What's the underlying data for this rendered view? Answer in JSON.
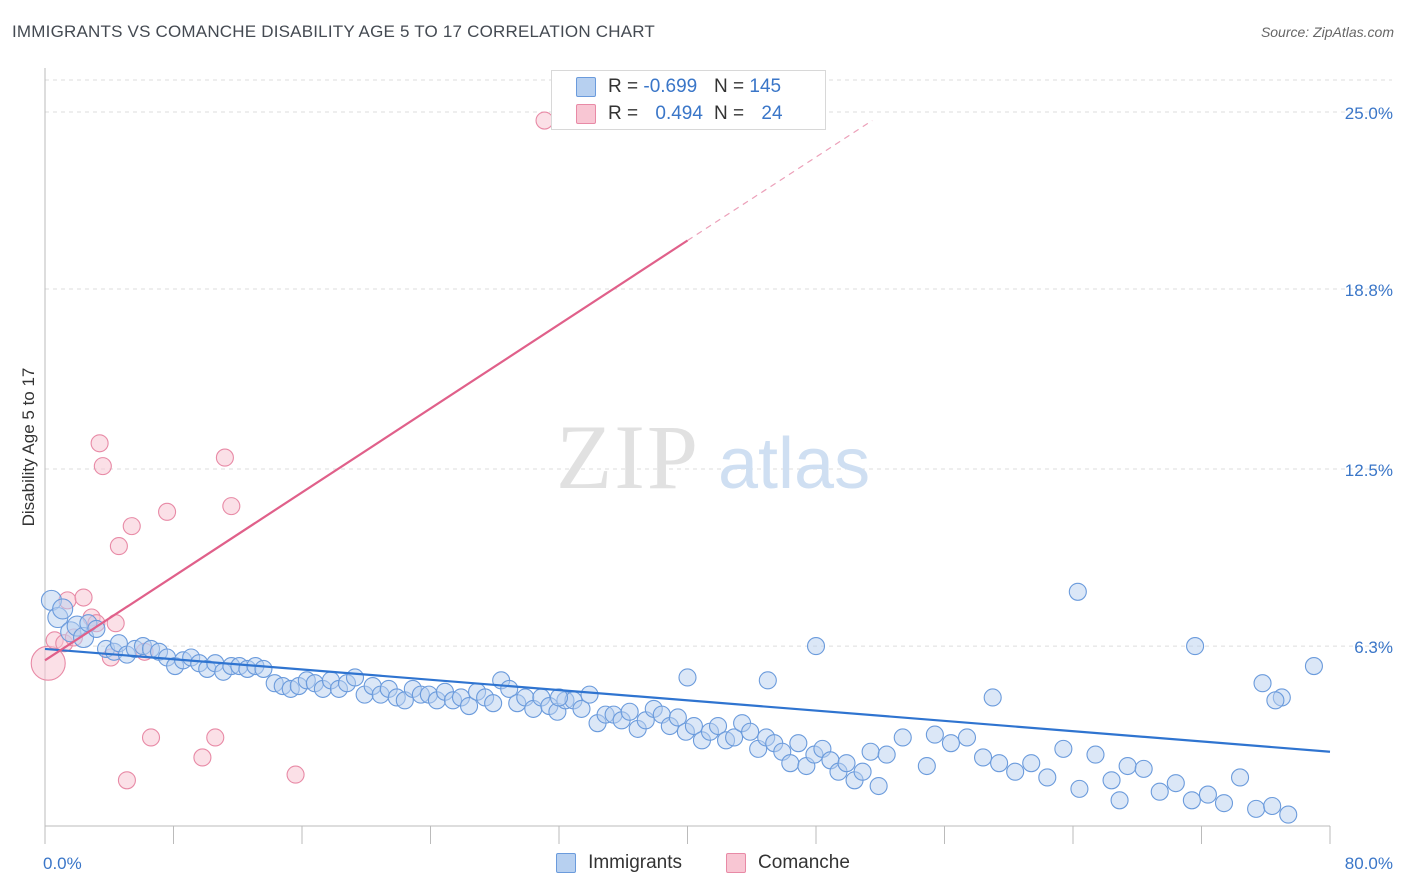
{
  "header": {
    "title": "IMMIGRANTS VS COMANCHE DISABILITY AGE 5 TO 17 CORRELATION CHART",
    "source": "Source: ZipAtlas.com"
  },
  "watermark": {
    "zip": "ZIP",
    "atlas": "atlas"
  },
  "colors": {
    "immigrants_fill": "#b7d0f0",
    "immigrants_stroke": "#6b9bdc",
    "immigrants_line": "#2f74d0",
    "comanche_fill": "#f8c6d3",
    "comanche_stroke": "#e88aa6",
    "comanche_line": "#e0608a",
    "axis_label": "#3a76c8",
    "grid": "#dddddd"
  },
  "legend_top": [
    {
      "r_label": "R = ",
      "r_value": "-0.699",
      "n_label": "N = ",
      "n_value": "145"
    },
    {
      "r_label": "R = ",
      "r_value": "0.494",
      "n_label": "N = ",
      "n_value": "24"
    }
  ],
  "legend_bottom": [
    "Immigrants",
    "Comanche"
  ],
  "chart_data": {
    "type": "scatter",
    "title": "IMMIGRANTS VS COMANCHE DISABILITY AGE 5 TO 17 CORRELATION CHART",
    "ylabel": "Disability Age 5 to 17",
    "xlim": [
      0,
      80
    ],
    "ylim": [
      0,
      26.4
    ],
    "x_tick_labels": [
      "0.0%",
      "80.0%"
    ],
    "y_tick_labels": [
      "25.0%",
      "18.8%",
      "12.5%",
      "6.3%"
    ],
    "y_ticks": [
      25.0,
      18.8,
      12.5,
      6.3
    ],
    "grid": true,
    "legend_placement": "top-center",
    "series": [
      {
        "name": "Immigrants",
        "r": -0.699,
        "n": 145,
        "trend": {
          "x": [
            0,
            80
          ],
          "y": [
            6.2,
            2.6
          ]
        },
        "points": [
          [
            0.4,
            7.9
          ],
          [
            0.8,
            7.3
          ],
          [
            1.1,
            7.6
          ],
          [
            1.6,
            6.8
          ],
          [
            2.0,
            7.0
          ],
          [
            2.4,
            6.6
          ],
          [
            2.7,
            7.1
          ],
          [
            3.2,
            6.9
          ],
          [
            3.8,
            6.2
          ],
          [
            4.3,
            6.1
          ],
          [
            4.6,
            6.4
          ],
          [
            5.1,
            6.0
          ],
          [
            5.6,
            6.2
          ],
          [
            6.1,
            6.3
          ],
          [
            6.6,
            6.2
          ],
          [
            7.1,
            6.1
          ],
          [
            7.6,
            5.9
          ],
          [
            8.1,
            5.6
          ],
          [
            8.6,
            5.8
          ],
          [
            9.1,
            5.9
          ],
          [
            9.6,
            5.7
          ],
          [
            10.1,
            5.5
          ],
          [
            10.6,
            5.7
          ],
          [
            11.1,
            5.4
          ],
          [
            11.6,
            5.6
          ],
          [
            12.1,
            5.6
          ],
          [
            12.6,
            5.5
          ],
          [
            13.1,
            5.6
          ],
          [
            13.6,
            5.5
          ],
          [
            14.3,
            5.0
          ],
          [
            14.8,
            4.9
          ],
          [
            15.3,
            4.8
          ],
          [
            15.8,
            4.9
          ],
          [
            16.3,
            5.1
          ],
          [
            16.8,
            5.0
          ],
          [
            17.3,
            4.8
          ],
          [
            17.8,
            5.1
          ],
          [
            18.3,
            4.8
          ],
          [
            18.8,
            5.0
          ],
          [
            19.3,
            5.2
          ],
          [
            19.9,
            4.6
          ],
          [
            20.4,
            4.9
          ],
          [
            20.9,
            4.6
          ],
          [
            21.4,
            4.8
          ],
          [
            21.9,
            4.5
          ],
          [
            22.4,
            4.4
          ],
          [
            22.9,
            4.8
          ],
          [
            23.4,
            4.6
          ],
          [
            23.9,
            4.6
          ],
          [
            24.4,
            4.4
          ],
          [
            24.9,
            4.7
          ],
          [
            25.4,
            4.4
          ],
          [
            25.9,
            4.5
          ],
          [
            26.4,
            4.2
          ],
          [
            26.9,
            4.7
          ],
          [
            27.4,
            4.5
          ],
          [
            27.9,
            4.3
          ],
          [
            28.4,
            5.1
          ],
          [
            28.9,
            4.8
          ],
          [
            29.4,
            4.3
          ],
          [
            29.9,
            4.5
          ],
          [
            30.4,
            4.1
          ],
          [
            30.9,
            4.5
          ],
          [
            31.4,
            4.2
          ],
          [
            31.9,
            4.0
          ],
          [
            32.4,
            4.4
          ],
          [
            32.9,
            4.4
          ],
          [
            33.4,
            4.1
          ],
          [
            33.9,
            4.6
          ],
          [
            34.4,
            3.6
          ],
          [
            34.9,
            3.9
          ],
          [
            35.4,
            3.9
          ],
          [
            35.9,
            3.7
          ],
          [
            36.4,
            4.0
          ],
          [
            36.9,
            3.4
          ],
          [
            37.4,
            3.7
          ],
          [
            37.9,
            4.1
          ],
          [
            38.4,
            3.9
          ],
          [
            38.9,
            3.5
          ],
          [
            39.4,
            3.8
          ],
          [
            39.9,
            3.3
          ],
          [
            40.4,
            3.5
          ],
          [
            40.9,
            3.0
          ],
          [
            41.4,
            3.3
          ],
          [
            41.9,
            3.5
          ],
          [
            42.4,
            3.0
          ],
          [
            42.9,
            3.1
          ],
          [
            43.4,
            3.6
          ],
          [
            43.9,
            3.3
          ],
          [
            44.4,
            2.7
          ],
          [
            44.9,
            3.1
          ],
          [
            45.4,
            2.9
          ],
          [
            45.9,
            2.6
          ],
          [
            46.4,
            2.2
          ],
          [
            46.9,
            2.9
          ],
          [
            47.4,
            2.1
          ],
          [
            47.9,
            2.5
          ],
          [
            48.4,
            2.7
          ],
          [
            48.9,
            2.3
          ],
          [
            49.4,
            1.9
          ],
          [
            49.9,
            2.2
          ],
          [
            50.4,
            1.6
          ],
          [
            50.9,
            1.9
          ],
          [
            51.4,
            2.6
          ],
          [
            51.9,
            1.4
          ],
          [
            52.4,
            2.5
          ],
          [
            53.4,
            3.1
          ],
          [
            54.9,
            2.1
          ],
          [
            55.4,
            3.2
          ],
          [
            56.4,
            2.9
          ],
          [
            57.4,
            3.1
          ],
          [
            58.4,
            2.4
          ],
          [
            59.4,
            2.2
          ],
          [
            60.4,
            1.9
          ],
          [
            61.4,
            2.2
          ],
          [
            62.4,
            1.7
          ],
          [
            63.4,
            2.7
          ],
          [
            64.4,
            1.3
          ],
          [
            65.4,
            2.5
          ],
          [
            66.4,
            1.6
          ],
          [
            66.9,
            0.9
          ],
          [
            67.4,
            2.1
          ],
          [
            68.4,
            2.0
          ],
          [
            69.4,
            1.2
          ],
          [
            70.4,
            1.5
          ],
          [
            71.4,
            0.9
          ],
          [
            72.4,
            1.1
          ],
          [
            73.4,
            0.8
          ],
          [
            74.4,
            1.7
          ],
          [
            75.4,
            0.6
          ],
          [
            76.4,
            0.7
          ],
          [
            77.4,
            0.4
          ],
          [
            64.3,
            8.2
          ],
          [
            71.6,
            6.3
          ],
          [
            77.0,
            4.5
          ],
          [
            79.0,
            5.6
          ],
          [
            75.8,
            5.0
          ],
          [
            76.6,
            4.4
          ],
          [
            59.0,
            4.5
          ],
          [
            48.0,
            6.3
          ],
          [
            40.0,
            5.2
          ],
          [
            45.0,
            5.1
          ],
          [
            32.0,
            4.5
          ]
        ]
      },
      {
        "name": "Comanche",
        "r": 0.494,
        "n": 24,
        "trend": {
          "x": [
            0,
            40
          ],
          "y": [
            5.8,
            20.5
          ]
        },
        "trend_dashed": {
          "x": [
            40,
            51.5
          ],
          "y": [
            20.5,
            24.7
          ]
        },
        "points": [
          [
            0.2,
            5.7
          ],
          [
            0.6,
            6.5
          ],
          [
            1.2,
            6.4
          ],
          [
            1.4,
            7.9
          ],
          [
            1.8,
            6.6
          ],
          [
            2.4,
            8.0
          ],
          [
            2.9,
            7.3
          ],
          [
            3.2,
            7.1
          ],
          [
            3.4,
            13.4
          ],
          [
            3.6,
            12.6
          ],
          [
            4.1,
            5.9
          ],
          [
            4.6,
            9.8
          ],
          [
            4.4,
            7.1
          ],
          [
            5.4,
            10.5
          ],
          [
            6.2,
            6.1
          ],
          [
            6.6,
            3.1
          ],
          [
            7.6,
            11.0
          ],
          [
            9.8,
            2.4
          ],
          [
            10.6,
            3.1
          ],
          [
            11.2,
            12.9
          ],
          [
            11.6,
            11.2
          ],
          [
            15.6,
            1.8
          ],
          [
            31.1,
            24.7
          ],
          [
            5.1,
            1.6
          ]
        ]
      }
    ]
  }
}
